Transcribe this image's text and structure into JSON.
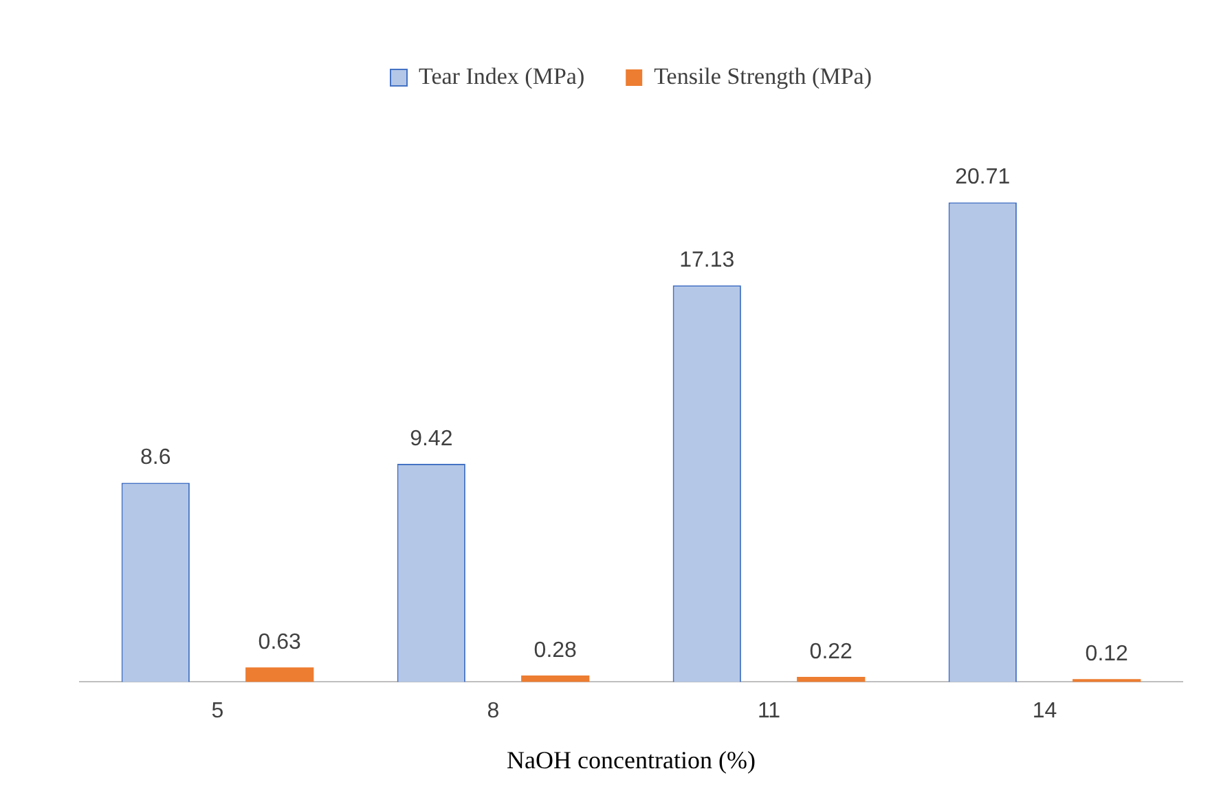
{
  "chart_data": {
    "type": "bar",
    "xlabel": "NaOH concentration (%)",
    "categories": [
      "5",
      "8",
      "11",
      "14"
    ],
    "series": [
      {
        "name": "Tear Index (MPa)",
        "color": "#b4c7e7",
        "values": [
          8.6,
          9.42,
          17.13,
          20.71
        ]
      },
      {
        "name": "Tensile Strength (MPa)",
        "color": "#ed7d31",
        "values": [
          0.63,
          0.28,
          0.22,
          0.12
        ]
      }
    ],
    "data_labels": true,
    "legend": "top",
    "grid": false
  }
}
